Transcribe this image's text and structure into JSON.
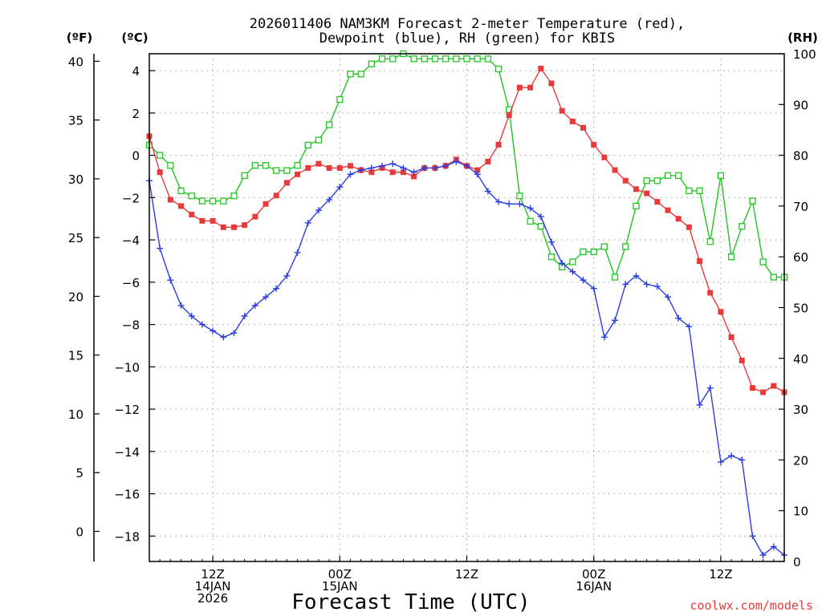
{
  "chart_data": {
    "type": "line",
    "title_line1": "2026011406 NAM3KM Forecast 2-meter Temperature (red),",
    "title_line2": "Dewpoint (blue), RH (green) for KBIS",
    "xlabel": "Forecast Time (UTC)",
    "credit": "coolwx.com/models",
    "units": {
      "fahrenheit": "(ºF)",
      "celsius": "(ºC)",
      "rh": "(RH)"
    },
    "x_hours_range": [
      7,
      67
    ],
    "celsius_range": [
      -19.2,
      4.8
    ],
    "rh_range": [
      0,
      100
    ],
    "fahrenheit_ticks": [
      "0",
      "5",
      "10",
      "15",
      "20",
      "25",
      "30",
      "35",
      "40"
    ],
    "celsius_ticks": [
      "4",
      "2",
      "0",
      "−2",
      "−4",
      "−6",
      "−8",
      "−10",
      "−12",
      "−14",
      "−16",
      "−18"
    ],
    "rh_ticks": [
      "0",
      "10",
      "20",
      "30",
      "40",
      "50",
      "60",
      "70",
      "80",
      "90",
      "100"
    ],
    "x_ticks": [
      {
        "hour": 13,
        "line1": "12Z",
        "line2": "14JAN",
        "line3": "2026"
      },
      {
        "hour": 25,
        "line1": "00Z",
        "line2": "15JAN",
        "line3": ""
      },
      {
        "hour": 37,
        "line1": "12Z",
        "line2": "",
        "line3": ""
      },
      {
        "hour": 49,
        "line1": "00Z",
        "line2": "16JAN",
        "line3": ""
      },
      {
        "hour": 61,
        "line1": "12Z",
        "line2": "",
        "line3": ""
      }
    ],
    "hours": [
      7,
      8,
      9,
      10,
      11,
      12,
      13,
      14,
      15,
      16,
      17,
      18,
      19,
      20,
      21,
      22,
      23,
      24,
      25,
      26,
      27,
      28,
      29,
      30,
      31,
      32,
      33,
      34,
      35,
      36,
      37,
      38,
      39,
      40,
      41,
      42,
      43,
      44,
      45,
      46,
      47,
      48,
      49,
      50,
      51,
      52,
      53,
      54,
      55,
      56,
      57,
      58,
      59,
      60,
      61,
      62,
      63,
      64,
      65,
      66,
      67
    ],
    "series": [
      {
        "name": "2-meter Temperature",
        "unit": "C",
        "color": "#e83a3a",
        "marker": "filled-square",
        "values": [
          0.9,
          -0.8,
          -2.1,
          -2.4,
          -2.8,
          -3.1,
          -3.1,
          -3.4,
          -3.4,
          -3.3,
          -2.9,
          -2.3,
          -1.9,
          -1.3,
          -0.9,
          -0.6,
          -0.4,
          -0.6,
          -0.6,
          -0.5,
          -0.7,
          -0.8,
          -0.6,
          -0.8,
          -0.8,
          -1.0,
          -0.6,
          -0.6,
          -0.5,
          -0.2,
          -0.5,
          -0.7,
          -0.3,
          0.5,
          1.9,
          3.2,
          3.2,
          4.1,
          3.4,
          2.1,
          1.6,
          1.3,
          0.5,
          -0.1,
          -0.7,
          -1.2,
          -1.6,
          -1.8,
          -2.2,
          -2.6,
          -3.0,
          -3.4,
          -5.0,
          -6.5,
          -7.4,
          -8.6,
          -9.7,
          -11.0,
          -11.2,
          -10.9,
          -11.2
        ]
      },
      {
        "name": "Dewpoint",
        "unit": "C",
        "color": "#2a3ee0",
        "marker": "plus",
        "values": [
          -1.2,
          -4.4,
          -5.9,
          -7.1,
          -7.6,
          -8.0,
          -8.3,
          -8.6,
          -8.4,
          -7.6,
          -7.1,
          -6.7,
          -6.3,
          -5.7,
          -4.6,
          -3.2,
          -2.6,
          -2.1,
          -1.5,
          -0.9,
          -0.7,
          -0.6,
          -0.5,
          -0.4,
          -0.6,
          -0.8,
          -0.6,
          -0.6,
          -0.5,
          -0.3,
          -0.5,
          -0.9,
          -1.7,
          -2.2,
          -2.3,
          -2.3,
          -2.5,
          -2.9,
          -4.1,
          -5.1,
          -5.5,
          -5.9,
          -6.3,
          -8.6,
          -7.8,
          -6.1,
          -5.7,
          -6.1,
          -6.2,
          -6.7,
          -7.7,
          -8.1,
          -11.8,
          -11.0,
          -14.5,
          -14.2,
          -14.4,
          -18.0,
          -18.9,
          -18.5,
          -18.9
        ]
      },
      {
        "name": "RH",
        "unit": "%",
        "color": "#22c522",
        "marker": "open-square",
        "values": [
          82,
          80,
          78,
          73,
          72,
          71,
          71,
          71,
          72,
          76,
          78,
          78,
          77,
          77,
          78,
          82,
          83,
          86,
          91,
          96,
          96,
          98,
          99,
          99,
          100,
          99,
          99,
          99,
          99,
          99,
          99,
          99,
          99,
          97,
          89,
          72,
          67,
          66,
          60,
          58,
          59,
          61,
          61,
          62,
          56,
          62,
          70,
          75,
          75,
          76,
          76,
          73,
          73,
          63,
          76,
          60,
          66,
          71,
          59,
          56,
          56
        ]
      }
    ]
  }
}
